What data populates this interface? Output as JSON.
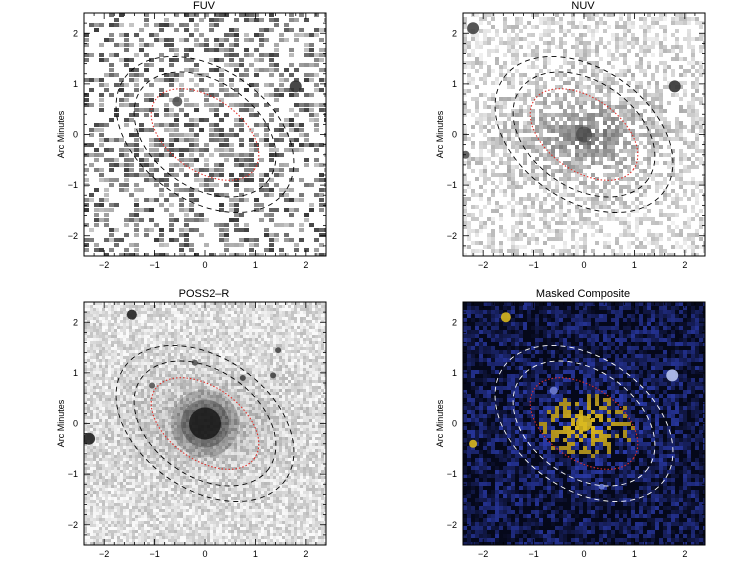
{
  "panels": [
    {
      "title": "FUV",
      "ylabel": "Arc Minutes",
      "style": "uv-sparse"
    },
    {
      "title": "NUV",
      "ylabel": "Arc Minutes",
      "style": "uv-dense"
    },
    {
      "title": "POSS2–R",
      "ylabel": "Arc Minutes",
      "style": "optical"
    },
    {
      "title": "Masked Composite",
      "ylabel": "Arc Minutes",
      "style": "composite"
    }
  ],
  "axis": {
    "x_ticks": [
      "−2",
      "−1",
      "0",
      "1",
      "2"
    ],
    "y_ticks": [
      "−2",
      "−1",
      "0",
      "1",
      "2"
    ],
    "range": [
      -2.4,
      2.4
    ]
  },
  "colors": {
    "inner_ellipse": "#e0302a",
    "outer_ellipse_light": "#000000",
    "outer_ellipse_dark": "#ffffff",
    "composite_bg": "#05081a",
    "composite_blue": "#3a56c8",
    "composite_yellow": "#d8b820"
  }
}
